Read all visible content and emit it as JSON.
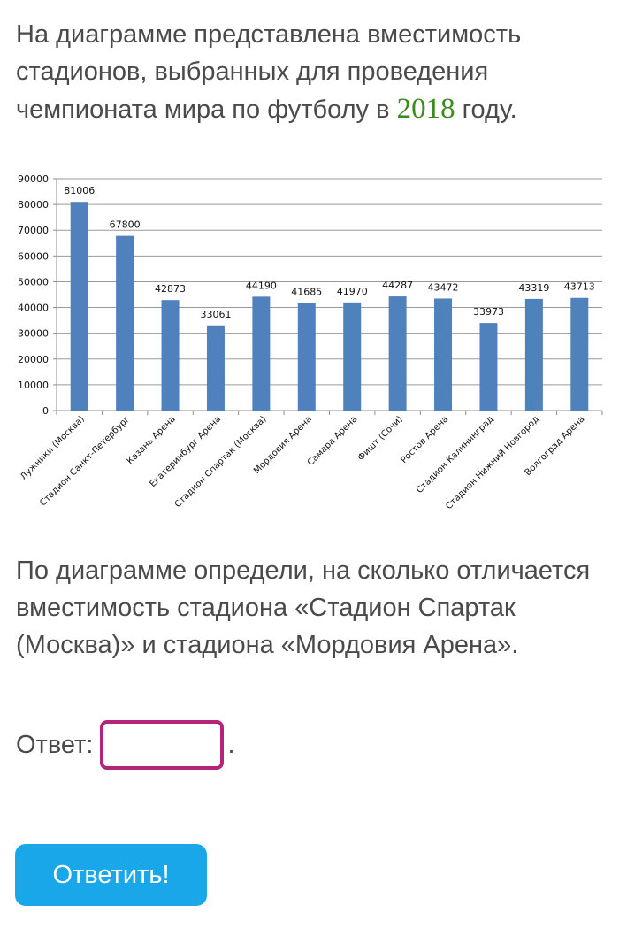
{
  "intro": {
    "before": "На диаграмме представлена вместимость стадионов, выбранных для проведения чемпионата мира по футболу в ",
    "year": "2018",
    "after": " году."
  },
  "chart_data": {
    "type": "bar",
    "title": "",
    "xlabel": "",
    "ylabel": "",
    "ylim": [
      0,
      90000
    ],
    "yticks": [
      0,
      10000,
      20000,
      30000,
      40000,
      50000,
      60000,
      70000,
      80000,
      90000
    ],
    "grid": true,
    "bar_color": "#4f81bd",
    "categories": [
      "Лужники (Москва)",
      "Стадион Санкт-Петербург",
      "Казань Арена",
      "Екатеринбург Арена",
      "Стадион Спартак (Москва)",
      "Мордовия Арена",
      "Самара Арена",
      "Фишт (Сочи)",
      "Ростов Арена",
      "Стадион Калининград",
      "Стадион Нижний Новгород",
      "Волгоград Арена"
    ],
    "values": [
      81006,
      67800,
      42873,
      33061,
      44190,
      41685,
      41970,
      44287,
      43472,
      33973,
      43319,
      43713
    ]
  },
  "question": {
    "text": "По диаграмме определи, на сколько  отличается вместимость стадиона «Стадион Спартак (Москва)» и стадиона «Мордовия Арена»."
  },
  "answer": {
    "label": "Ответ:",
    "value": "",
    "suffix": "."
  },
  "submit": {
    "label": "Ответить!"
  },
  "colors": {
    "text": "#4a4a4a",
    "year": "#3a8a1f",
    "input_border": "#b5247a",
    "button": "#1aa7ea"
  }
}
